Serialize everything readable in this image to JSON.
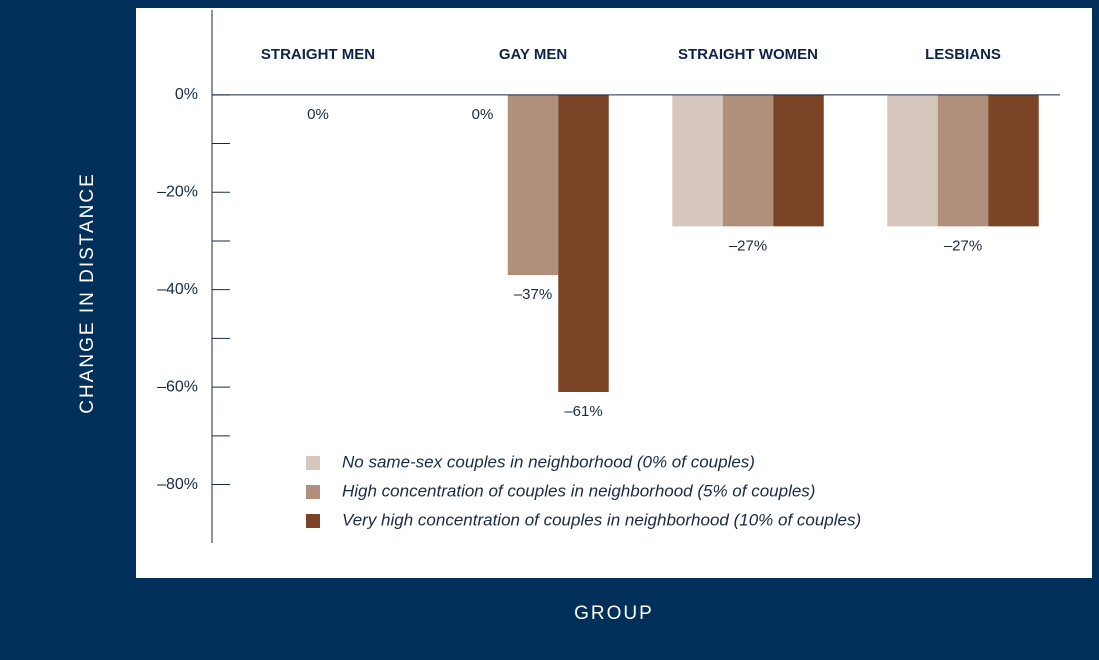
{
  "chart_data": {
    "type": "bar",
    "x_label": "GROUP",
    "y_label": "CHANGE IN DISTANCE",
    "categories": [
      "STRAIGHT MEN",
      "GAY MEN",
      "STRAIGHT WOMEN",
      "LESBIANS"
    ],
    "series": [
      {
        "name": "No same-sex couples in neighborhood (0% of couples)",
        "color": "#d7c8bf",
        "values": [
          0,
          0,
          -27,
          -27
        ],
        "value_labels": [
          null,
          "0%",
          null,
          null
        ]
      },
      {
        "name": "High concentration of couples in neighborhood (5% of couples)",
        "color": "#b0907b",
        "values": [
          0,
          -37,
          -27,
          -27
        ],
        "value_labels": [
          "0%",
          "–37%",
          "–27%",
          "–27%"
        ]
      },
      {
        "name": "Very high concentration of couples in neighborhood (10% of couples)",
        "color": "#7a4527",
        "values": [
          0,
          -61,
          -27,
          -27
        ],
        "value_labels": [
          null,
          "–61%",
          null,
          null
        ]
      }
    ],
    "ylim": [
      -92,
      17
    ],
    "yticks": [
      {
        "value": 0,
        "label": "0%"
      },
      {
        "value": -20,
        "label": "–20%"
      },
      {
        "value": -40,
        "label": "–40%"
      },
      {
        "value": -60,
        "label": "–60%"
      },
      {
        "value": -80,
        "label": "–80%"
      }
    ],
    "yminor": [
      -10,
      -30,
      -50,
      -70
    ]
  }
}
